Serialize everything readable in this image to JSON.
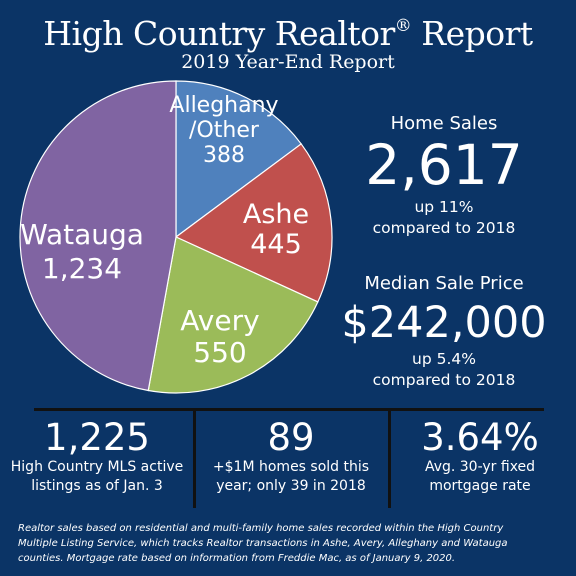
{
  "header": {
    "title": "High Country Realtor",
    "title_mark": "®",
    "title_end": " Report",
    "subtitle": "2019 Year-End Report"
  },
  "chart_data": {
    "type": "pie",
    "slices": [
      {
        "label_lines": [
          "Alleghany",
          "/Other",
          "388"
        ],
        "category": "Alleghany/Other",
        "value": 388,
        "color": "#4f81bd"
      },
      {
        "label_lines": [
          "Ashe",
          "445"
        ],
        "category": "Ashe",
        "value": 445,
        "color": "#c0504d"
      },
      {
        "label_lines": [
          "Avery",
          "550"
        ],
        "category": "Avery",
        "value": 550,
        "color": "#9bbb59"
      },
      {
        "label_lines": [
          "Watauga",
          "1,234"
        ],
        "category": "Watauga",
        "value": 1234,
        "color": "#8064a2"
      }
    ]
  },
  "home_sales": {
    "label": "Home Sales",
    "value": "2,617",
    "change": "up 11%",
    "compare": "compared to 2018"
  },
  "median_price": {
    "label": "Median Sale Price",
    "value": "$242,000",
    "change": "up 5.4%",
    "compare": "compared to 2018"
  },
  "bottom_stats": [
    {
      "value": "1,225",
      "line1": "High Country MLS active",
      "line2": "listings as of Jan. 3"
    },
    {
      "value": "89",
      "line1": "+$1M homes sold this",
      "line2": "year; only 39 in 2018"
    },
    {
      "value": "3.64%",
      "line1": "Avg. 30-yr fixed",
      "line2": "mortgage rate"
    }
  ],
  "footnote": {
    "line1": "Realtor sales based on residential and multi-family home sales recorded within the High Country",
    "line2": "Multiple Listing Service, which tracks Realtor transactions in Ashe, Avery, Alleghany and Watauga",
    "line3": "counties. Mortgage rate based on information from Freddie Mac, as of January 9, 2020."
  }
}
